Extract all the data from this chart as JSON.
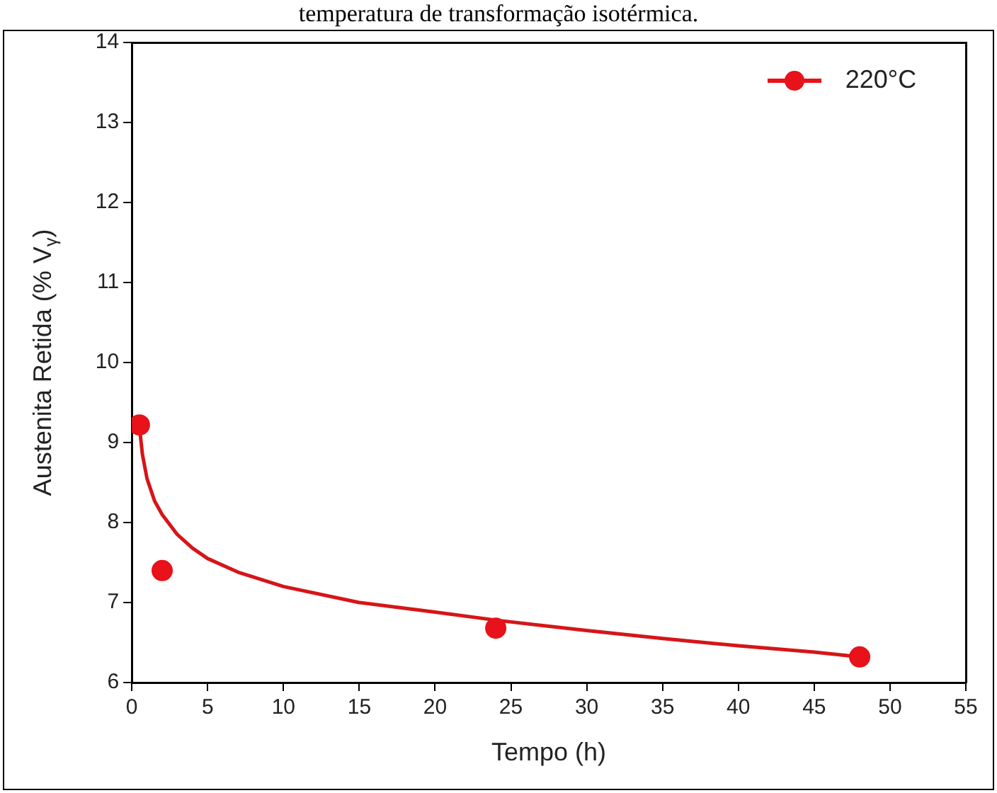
{
  "chart_data": {
    "type": "scatter",
    "title": "temperatura de transformação isotérmica.",
    "xlabel": "Tempo (h)",
    "ylabel": "Austenita Retida (% V$_{γ}$)",
    "xlim": [
      0,
      55
    ],
    "xticks": [
      0,
      5,
      10,
      15,
      20,
      25,
      30,
      35,
      40,
      45,
      50,
      55
    ],
    "ylim": [
      6,
      14
    ],
    "yticks": [
      6,
      7,
      8,
      9,
      10,
      11,
      12,
      13,
      14
    ],
    "legend": "top right",
    "grid": false,
    "marker": "circle",
    "series": [
      {
        "name": "220°C",
        "color": "#e8121a",
        "x": [
          0.5,
          2,
          24,
          48
        ],
        "values": [
          9.22,
          7.4,
          6.68,
          6.32
        ]
      },
      {
        "type": "line",
        "color": "#d61518",
        "marker": "none",
        "line_style": "solid",
        "x": [
          0.5,
          0.7,
          1,
          1.5,
          2,
          3,
          4,
          5,
          7,
          10,
          15,
          20,
          24,
          30,
          35,
          40,
          45,
          48
        ],
        "values": [
          9.2,
          8.85,
          8.55,
          8.27,
          8.1,
          7.85,
          7.68,
          7.55,
          7.38,
          7.2,
          7.0,
          6.88,
          6.78,
          6.65,
          6.55,
          6.46,
          6.38,
          6.32
        ]
      }
    ]
  }
}
